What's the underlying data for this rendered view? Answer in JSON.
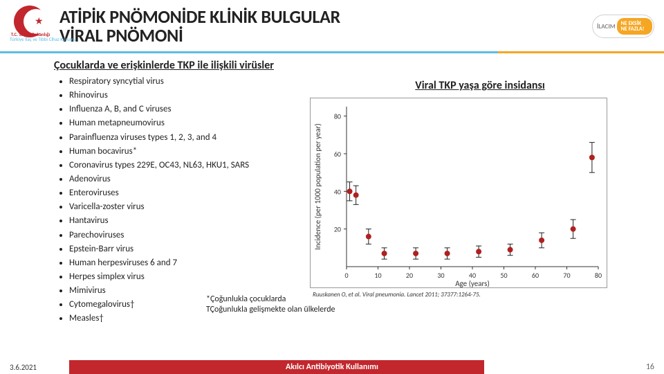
{
  "header": {
    "logo_left_line1": "T.C. Sağlık Bakanlığı",
    "logo_left_line2": "Türkiye İlaç ve Tıbbi Cihaz Kurumu",
    "title_line1": "ATİPİK PNÖMONİDE KLİNİK BULGULAR",
    "title_line2": "VİRAL PNÖMONİ",
    "logo_right_big": "İLACIM",
    "logo_right_tag": "NE EKSİK NE FAZLA!"
  },
  "subheading": "Çocuklarda ve erişkinlerde TKP ile ilişkili virüsler",
  "viruses": [
    "Respiratory syncytial virus",
    "Rhinovirus",
    "Influenza A, B, and C viruses",
    "Human metapneumovirus",
    "Parainfluenza viruses types 1, 2, 3, and 4",
    "Human bocavirus*",
    "Coronavirus types 229E, OC43, NL63, HKU1, SARS",
    "Adenovirus",
    "Enteroviruses",
    "Varicella-zoster virus",
    "Hantavirus",
    "Parechoviruses",
    "Epstein-Barr virus",
    "Human herpesviruses 6 and 7",
    "Herpes simplex virus",
    "Mimivirus",
    "Cytomegalovirus†",
    "Measles†"
  ],
  "footnotes": {
    "a": "*Çoğunlukla çocuklarda",
    "b": "TÇoğunlukla gelişmekte olan ülkelerde"
  },
  "chart": {
    "title": "Viral TKP yaşa göre insidansı",
    "type": "scatter-with-error-bars",
    "xlabel": "Age (years)",
    "ylabel": "Incidence (per 1000 population per year)",
    "xlim": [
      0,
      80
    ],
    "ylim": [
      0,
      85
    ],
    "x_ticks": [
      0,
      10,
      20,
      30,
      40,
      50,
      60,
      70,
      80
    ],
    "y_ticks": [
      20,
      40,
      60,
      80
    ],
    "point_color": "#b02020",
    "error_color": "#202020",
    "background_color": "#ffffff",
    "axis_color": "#333333",
    "marker_size": 4,
    "data": [
      {
        "x": 1,
        "y": 40,
        "err": 5
      },
      {
        "x": 3,
        "y": 38,
        "err": 5
      },
      {
        "x": 7,
        "y": 16,
        "err": 4
      },
      {
        "x": 12,
        "y": 7,
        "err": 3
      },
      {
        "x": 22,
        "y": 7,
        "err": 3
      },
      {
        "x": 32,
        "y": 7,
        "err": 3
      },
      {
        "x": 42,
        "y": 8,
        "err": 3
      },
      {
        "x": 52,
        "y": 9,
        "err": 3
      },
      {
        "x": 62,
        "y": 14,
        "err": 4
      },
      {
        "x": 72,
        "y": 20,
        "err": 5
      },
      {
        "x": 78,
        "y": 58,
        "err": 8
      }
    ]
  },
  "citation": "Ruuskanen O, et al. Viral pneumonia. Lancet 2011; 37377:1264-75.",
  "footer": {
    "date": "3.6.2021",
    "center": "Akılcı Antibiyotik Kullanımı",
    "page": "16"
  },
  "colors": {
    "accent_blue": "#5bbce4",
    "accent_orange": "#f5a623",
    "brand_red": "#c1272d"
  }
}
